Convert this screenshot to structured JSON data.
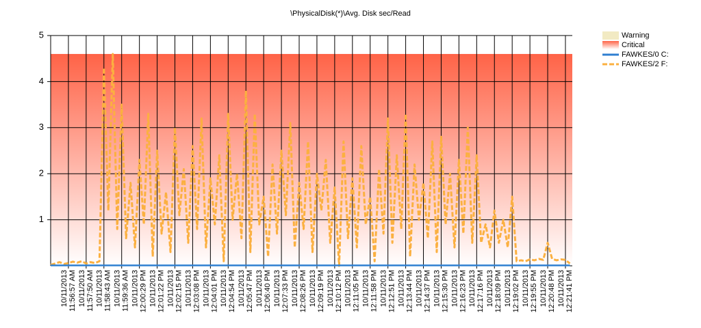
{
  "chart_data": {
    "type": "line",
    "title": "\\PhysicalDisk(*)\\Avg. Disk sec/Read",
    "categories": [
      null,
      null,
      null,
      null,
      [
        "10/11/2013",
        "11:56:57 AM"
      ],
      null,
      null,
      null,
      [
        "10/11/2013",
        "11:57:50 AM"
      ],
      null,
      null,
      null,
      [
        "10/11/2013",
        "11:58:43 AM"
      ],
      null,
      null,
      null,
      [
        "10/11/2013",
        "11:59:36 AM"
      ],
      null,
      null,
      null,
      [
        "10/11/2013",
        "12:00:29 PM"
      ],
      null,
      null,
      null,
      [
        "10/11/2013",
        "12:01:22 PM"
      ],
      null,
      null,
      null,
      [
        "10/11/2013",
        "12:02:15 PM"
      ],
      null,
      null,
      null,
      [
        "10/11/2013",
        "12:03:08 PM"
      ],
      null,
      null,
      null,
      [
        "10/11/2013",
        "12:04:01 PM"
      ],
      null,
      null,
      null,
      [
        "10/11/2013",
        "12:04:54 PM"
      ],
      null,
      null,
      null,
      [
        "10/11/2013",
        "12:05:47 PM"
      ],
      null,
      null,
      null,
      [
        "10/11/2013",
        "12:06:40 PM"
      ],
      null,
      null,
      null,
      [
        "10/11/2013",
        "12:07:33 PM"
      ],
      null,
      null,
      null,
      [
        "10/11/2013",
        "12:08:26 PM"
      ],
      null,
      null,
      null,
      [
        "10/11/2013",
        "12:09:19 PM"
      ],
      null,
      null,
      null,
      [
        "10/11/2013",
        "12:10:12 PM"
      ],
      null,
      null,
      null,
      [
        "10/11/2013",
        "12:11:05 PM"
      ],
      null,
      null,
      null,
      [
        "10/11/2013",
        "12:11:58 PM"
      ],
      null,
      null,
      null,
      [
        "10/11/2013",
        "12:12:51 PM"
      ],
      null,
      null,
      null,
      [
        "10/11/2013",
        "12:13:44 PM"
      ],
      null,
      null,
      null,
      [
        "10/11/2013",
        "12:14:37 PM"
      ],
      null,
      null,
      null,
      [
        "10/11/2013",
        "12:15:30 PM"
      ],
      null,
      null,
      null,
      [
        "10/11/2013",
        "12:16:23 PM"
      ],
      null,
      null,
      null,
      [
        "10/11/2013",
        "12:17:16 PM"
      ],
      null,
      null,
      null,
      [
        "10/11/2013",
        "12:18:09 PM"
      ],
      null,
      null,
      null,
      [
        "10/11/2013",
        "12:19:02 PM"
      ],
      null,
      null,
      null,
      [
        "10/11/2013",
        "12:19:55 PM"
      ],
      null,
      null,
      null,
      [
        "10/11/2013",
        "12:20:48 PM"
      ],
      null,
      null,
      null,
      [
        "10/11/2013",
        "12:21:41 PM"
      ],
      null
    ],
    "bands": [
      {
        "name": "Warning",
        "color": "#f2eac3"
      },
      {
        "name": "Critical",
        "color": "#ff6347",
        "to": 4.6
      }
    ],
    "series": [
      {
        "name": "FAWKES/0 C:",
        "color": "#2f7fd0",
        "dash": false,
        "values": [
          0.01,
          0.01,
          0.01,
          0.01,
          0.01,
          0.01,
          0.01,
          0.01,
          0.01,
          0.01,
          0.01,
          0.01,
          0.01,
          0.01,
          0.01,
          0.01,
          0.01,
          0.01,
          0.01,
          0.01,
          0.01,
          0.01,
          0.01,
          0.01,
          0.01,
          0.01,
          0.01,
          0.01,
          0.01,
          0.01,
          0.01,
          0.01,
          0.01,
          0.01,
          0.01,
          0.01,
          0.01,
          0.01,
          0.01,
          0.01,
          0.01,
          0.01,
          0.01,
          0.01,
          0.01,
          0.01,
          0.01,
          0.01,
          0.01,
          0.01,
          0.01,
          0.01,
          0.01,
          0.01,
          0.01,
          0.01,
          0.01,
          0.01,
          0.01,
          0.01,
          0.01,
          0.01,
          0.01,
          0.01,
          0.01,
          0.01,
          0.01,
          0.01,
          0.01,
          0.01,
          0.01,
          0.01,
          0.01,
          0.01,
          0.01,
          0.01,
          0.01,
          0.01,
          0.01,
          0.01,
          0.01,
          0.01,
          0.01,
          0.01,
          0.01,
          0.01,
          0.01,
          0.01,
          0.01,
          0.01,
          0.01,
          0.01,
          0.01,
          0.01,
          0.01,
          0.01,
          0.01,
          0.01,
          0.01,
          0.01,
          0.01,
          0.01,
          0.01,
          0.01,
          0.01,
          0.01,
          0.01,
          0.01,
          0.01,
          0.01,
          0.01,
          0.01,
          0.01,
          0.01,
          0.01,
          0.01,
          0.01,
          0.01
        ]
      },
      {
        "name": "FAWKES/2 F:",
        "color": "#fbb040",
        "dash": true,
        "values": [
          0.02,
          0.05,
          0.08,
          0.04,
          0.06,
          0.09,
          0.07,
          0.1,
          0.05,
          0.08,
          0.06,
          0.1,
          4.3,
          1.2,
          4.6,
          0.8,
          3.5,
          0.6,
          1.8,
          0.4,
          2.3,
          0.9,
          3.3,
          0.2,
          2.5,
          0.7,
          1.6,
          0.3,
          3.0,
          1.1,
          2.1,
          0.5,
          2.6,
          0.8,
          3.2,
          0.4,
          1.9,
          0.9,
          2.4,
          0.1,
          3.3,
          1.0,
          2.0,
          0.6,
          3.8,
          0.3,
          3.3,
          0.9,
          1.5,
          0.2,
          2.2,
          0.7,
          2.5,
          1.1,
          3.1,
          0.4,
          1.8,
          0.8,
          2.7,
          0.3,
          2.0,
          1.2,
          2.3,
          0.5,
          1.7,
          0.0,
          2.7,
          0.6,
          1.9,
          0.4,
          2.6,
          0.9,
          1.5,
          0.1,
          2.1,
          0.7,
          3.2,
          0.5,
          2.4,
          0.8,
          3.3,
          0.2,
          2.2,
          1.0,
          1.8,
          0.6,
          2.7,
          0.3,
          2.8,
          0.9,
          2.0,
          0.4,
          2.3,
          0.7,
          3.0,
          0.5,
          2.4,
          0.5,
          0.9,
          0.4,
          1.2,
          0.5,
          1.0,
          0.4,
          1.5,
          0.1,
          0.12,
          0.1,
          0.14,
          0.12,
          0.15,
          0.13,
          0.5,
          0.15,
          0.12,
          0.14,
          0.13,
          0.05
        ]
      }
    ],
    "ylim": [
      0,
      5
    ],
    "yticks": [
      1,
      2,
      3,
      4,
      5
    ],
    "grid": true
  }
}
